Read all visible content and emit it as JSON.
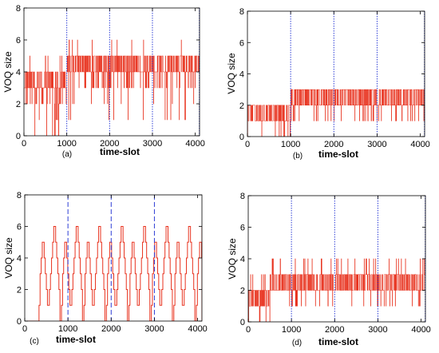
{
  "figure": {
    "panels": [
      "a",
      "b",
      "c",
      "d"
    ]
  },
  "chart_data": [
    {
      "id": "a",
      "type": "line",
      "style": "noisy",
      "caption": "(a)",
      "xlabel": "time-slot",
      "ylabel": "VOQ size",
      "xlim": [
        0,
        4100
      ],
      "ylim": [
        0,
        8
      ],
      "xticks": [
        0,
        1000,
        2000,
        3000,
        4000
      ],
      "yticks": [
        0,
        2,
        4,
        6,
        8
      ],
      "markers": [
        1000,
        2000,
        3000,
        4096
      ],
      "marker_style": "dotted",
      "series_color": "#e8321e",
      "marker_color": "#2f3fd6",
      "segments": [
        {
          "x": [
            0,
            1000
          ],
          "baseline": 3,
          "low": 0,
          "high": 5
        },
        {
          "x": [
            1000,
            2000
          ],
          "baseline": 4,
          "low": 1,
          "high": 6
        },
        {
          "x": [
            2000,
            3000
          ],
          "baseline": 4,
          "low": 1,
          "high": 6
        },
        {
          "x": [
            3000,
            4100
          ],
          "baseline": 4,
          "low": 1,
          "high": 6
        }
      ]
    },
    {
      "id": "b",
      "type": "line",
      "style": "noisy",
      "caption": "(b)",
      "xlabel": "time-slot",
      "ylabel": "VOQ size",
      "xlim": [
        0,
        4100
      ],
      "ylim": [
        0,
        8
      ],
      "xticks": [
        0,
        1000,
        2000,
        3000,
        4000
      ],
      "yticks": [
        0,
        2,
        4,
        6,
        8
      ],
      "markers": [
        1000,
        2000,
        3000,
        4096
      ],
      "marker_style": "dotted",
      "series_color": "#e8321e",
      "marker_color": "#2f3fd6",
      "segments": [
        {
          "x": [
            0,
            1000
          ],
          "baseline": 1.5,
          "low": 0,
          "high": 2
        },
        {
          "x": [
            1000,
            2000
          ],
          "baseline": 2.5,
          "low": 1,
          "high": 3
        },
        {
          "x": [
            2000,
            3000
          ],
          "baseline": 2.5,
          "low": 1,
          "high": 3
        },
        {
          "x": [
            3000,
            4100
          ],
          "baseline": 2.5,
          "low": 1,
          "high": 3
        }
      ]
    },
    {
      "id": "c",
      "type": "line",
      "style": "staircase",
      "caption": "(c)",
      "xlabel": "time-slot",
      "ylabel": "VOQ size",
      "xlim": [
        0,
        4100
      ],
      "ylim": [
        0,
        8
      ],
      "xticks": [
        0,
        1000,
        2000,
        3000,
        4000
      ],
      "yticks": [
        0,
        2,
        4,
        6,
        8
      ],
      "markers": [
        1000,
        2000,
        3000
      ],
      "marker_style": "dashed",
      "series_color": "#e8321e",
      "marker_color": "#2f3fd6",
      "start": 330,
      "period": 520,
      "cycle": [
        {
          "dx": 0,
          "y": 1
        },
        {
          "dx": 25,
          "y": 3
        },
        {
          "dx": 50,
          "y": 4
        },
        {
          "dx": 75,
          "y": 5
        },
        {
          "dx": 120,
          "y": 4
        },
        {
          "dx": 145,
          "y": 3
        },
        {
          "dx": 170,
          "y": 2
        },
        {
          "dx": 195,
          "y": 1
        },
        {
          "dx": 240,
          "y": 2
        },
        {
          "dx": 265,
          "y": 3
        },
        {
          "dx": 290,
          "y": 4
        },
        {
          "dx": 315,
          "y": 5
        },
        {
          "dx": 340,
          "y": 6
        },
        {
          "dx": 385,
          "y": 5
        },
        {
          "dx": 410,
          "y": 4
        },
        {
          "dx": 435,
          "y": 3
        },
        {
          "dx": 460,
          "y": 2
        },
        {
          "dx": 485,
          "y": 0
        }
      ]
    },
    {
      "id": "d",
      "type": "line",
      "style": "noisy",
      "caption": "(d)",
      "xlabel": "time-slot",
      "ylabel": "VOQ size",
      "xlim": [
        0,
        4100
      ],
      "ylim": [
        0,
        8
      ],
      "xticks": [
        0,
        1000,
        2000,
        3000,
        4000
      ],
      "yticks": [
        0,
        2,
        4,
        6,
        8
      ],
      "markers": [
        1000,
        2000,
        3000,
        4096
      ],
      "marker_style": "dotted",
      "series_color": "#e8321e",
      "marker_color": "#2f3fd6",
      "segments": [
        {
          "x": [
            0,
            500
          ],
          "baseline": 1.5,
          "low": 0,
          "high": 3
        },
        {
          "x": [
            500,
            4100
          ],
          "baseline": 2.5,
          "low": 1,
          "high": 4
        }
      ]
    }
  ]
}
